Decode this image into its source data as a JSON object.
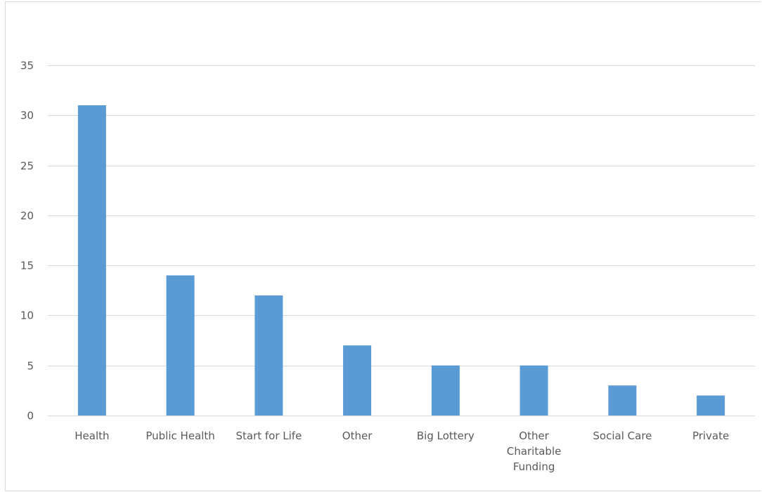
{
  "chart_data": {
    "type": "bar",
    "title": "",
    "xlabel": "",
    "ylabel": "",
    "categories": [
      "Health",
      "Public Health",
      "Start for Life",
      "Other",
      "Big Lottery",
      "Other Charitable Funding",
      "Social Care",
      "Private"
    ],
    "category_label_lines": [
      [
        "Health"
      ],
      [
        "Public Health"
      ],
      [
        "Start for Life"
      ],
      [
        "Other"
      ],
      [
        "Big Lottery"
      ],
      [
        "Other",
        "Charitable",
        "Funding"
      ],
      [
        "Social Care"
      ],
      [
        "Private"
      ]
    ],
    "values": [
      31,
      14,
      12,
      7,
      5,
      5,
      3,
      2
    ],
    "ylim": [
      0,
      35
    ],
    "yticks": [
      0,
      5,
      10,
      15,
      20,
      25,
      30,
      35
    ],
    "ytick_labels": [
      "0",
      "5",
      "10",
      "15",
      "20",
      "25",
      "30",
      "35"
    ],
    "grid": true,
    "legend": "none",
    "bar_color": "#5b9bd5",
    "grid_color": "#d9d9d9",
    "text_color": "#595959"
  }
}
